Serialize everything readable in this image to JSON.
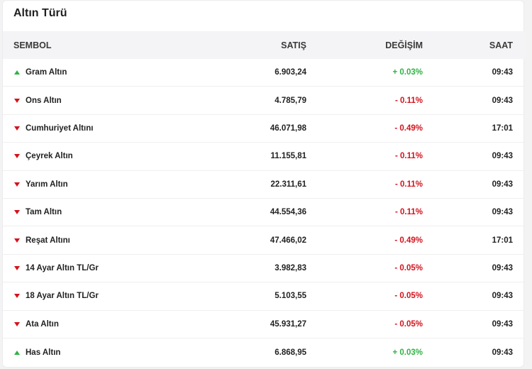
{
  "title": "Altın Türü",
  "columns": {
    "symbol": "SEMBOL",
    "sell": "SATIŞ",
    "change": "DEĞİŞİM",
    "time": "SAAT"
  },
  "colors": {
    "up": "#2fb344",
    "down": "#d4121c"
  },
  "rows": [
    {
      "name": "Gram Altın",
      "sell": "6.903,24",
      "change": "+ 0.03%",
      "time": "09:43",
      "direction": "up",
      "icon": "triangle-up-icon"
    },
    {
      "name": "Ons Altın",
      "sell": "4.785,79",
      "change": "- 0.11%",
      "time": "09:43",
      "direction": "down",
      "icon": "triangle-down-icon"
    },
    {
      "name": "Cumhuriyet Altını",
      "sell": "46.071,98",
      "change": "- 0.49%",
      "time": "17:01",
      "direction": "down",
      "icon": "triangle-down-icon"
    },
    {
      "name": "Çeyrek Altın",
      "sell": "11.155,81",
      "change": "- 0.11%",
      "time": "09:43",
      "direction": "down",
      "icon": "triangle-down-icon"
    },
    {
      "name": "Yarım Altın",
      "sell": "22.311,61",
      "change": "- 0.11%",
      "time": "09:43",
      "direction": "down",
      "icon": "triangle-down-icon"
    },
    {
      "name": "Tam Altın",
      "sell": "44.554,36",
      "change": "- 0.11%",
      "time": "09:43",
      "direction": "down",
      "icon": "triangle-down-icon"
    },
    {
      "name": "Reşat Altını",
      "sell": "47.466,02",
      "change": "- 0.49%",
      "time": "17:01",
      "direction": "down",
      "icon": "triangle-down-icon"
    },
    {
      "name": "14 Ayar Altın TL/Gr",
      "sell": "3.982,83",
      "change": "- 0.05%",
      "time": "09:43",
      "direction": "down",
      "icon": "triangle-down-icon"
    },
    {
      "name": "18 Ayar Altın TL/Gr",
      "sell": "5.103,55",
      "change": "- 0.05%",
      "time": "09:43",
      "direction": "down",
      "icon": "triangle-down-icon"
    },
    {
      "name": "Ata Altın",
      "sell": "45.931,27",
      "change": "- 0.05%",
      "time": "09:43",
      "direction": "down",
      "icon": "triangle-down-icon"
    },
    {
      "name": "Has Altın",
      "sell": "6.868,95",
      "change": "+ 0.03%",
      "time": "09:43",
      "direction": "up",
      "icon": "triangle-up-icon"
    }
  ]
}
